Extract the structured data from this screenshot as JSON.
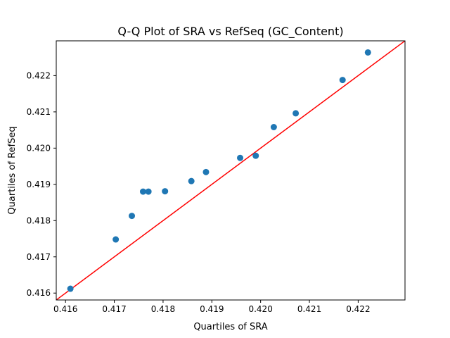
{
  "chart_data": {
    "type": "scatter",
    "title": "Q-Q Plot of SRA vs RefSeq (GC_Content)",
    "xlabel": "Quartiles of SRA",
    "ylabel": "Quartiles of RefSeq",
    "xlim": [
      0.41581,
      0.42296
    ],
    "ylim": [
      0.41581,
      0.42296
    ],
    "xticks": [
      0.416,
      0.417,
      0.418,
      0.419,
      0.42,
      0.421,
      0.422
    ],
    "yticks": [
      0.416,
      0.417,
      0.418,
      0.419,
      0.42,
      0.421,
      0.422
    ],
    "xtick_labels": [
      "0.416",
      "0.417",
      "0.418",
      "0.419",
      "0.420",
      "0.421",
      "0.422"
    ],
    "ytick_labels": [
      "0.416",
      "0.417",
      "0.418",
      "0.419",
      "0.420",
      "0.421",
      "0.422"
    ],
    "series": [
      {
        "x": [
          0.4161,
          0.41703,
          0.41736,
          0.41759,
          0.4177,
          0.41804,
          0.41858,
          0.41888,
          0.41958,
          0.4199,
          0.42027,
          0.42072,
          0.42168,
          0.4222
        ],
        "y": [
          0.41612,
          0.41748,
          0.41813,
          0.4188,
          0.4188,
          0.41881,
          0.41909,
          0.41934,
          0.41973,
          0.41979,
          0.42058,
          0.42096,
          0.42188,
          0.42264
        ],
        "color": "#1f77b4"
      }
    ],
    "reference_line": {
      "type": "y=x",
      "color": "#ff0000"
    },
    "grid": false
  }
}
